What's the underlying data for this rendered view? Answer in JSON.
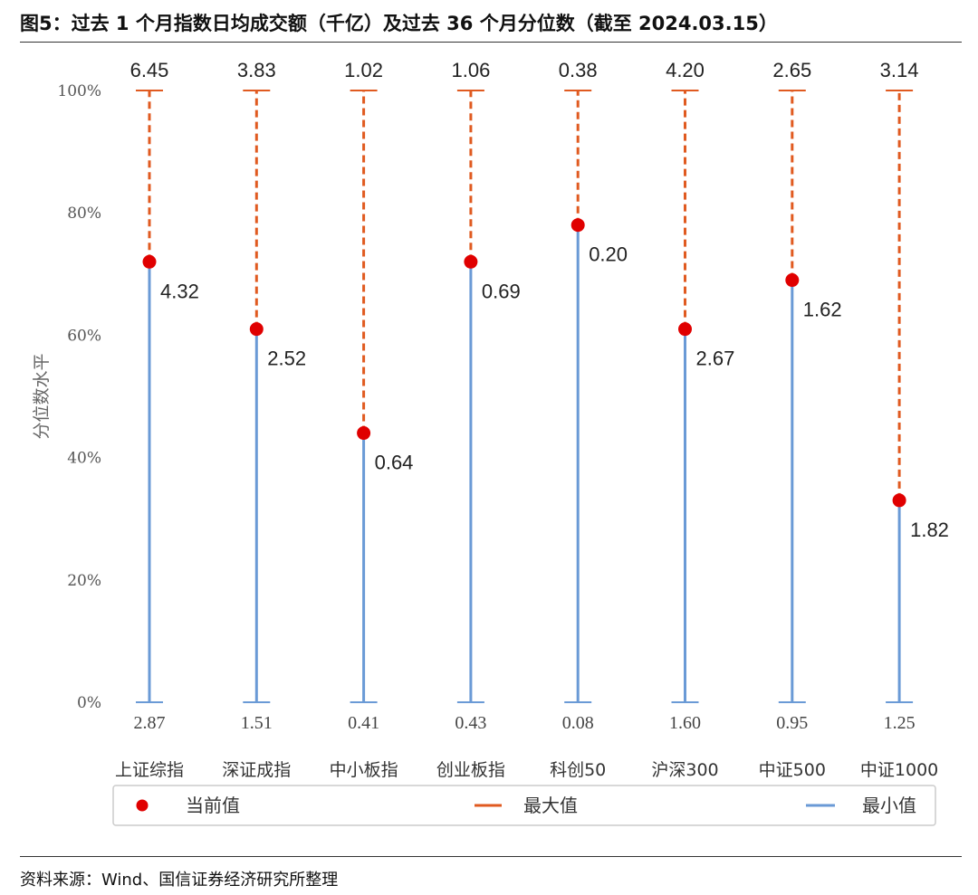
{
  "figure": {
    "title": "图5：过去 1 个月指数日均成交额（千亿）及过去 36 个月分位数（截至 2024.03.15）",
    "source": "资料来源：Wind、国信证券经济研究所整理"
  },
  "colors": {
    "current": "#e00000",
    "max": "#e05a20",
    "min": "#6a9ad6"
  },
  "chart_data": {
    "type": "scatter",
    "title": "",
    "ylabel": "分位数水平",
    "ylim": [
      0,
      100
    ],
    "yticks": [
      "0%",
      "20%",
      "40%",
      "60%",
      "80%",
      "100%"
    ],
    "ytick_values": [
      0,
      20,
      40,
      60,
      80,
      100
    ],
    "grid": false,
    "legend_placement": "bottom",
    "categories": [
      "上证综指",
      "深证成指",
      "中小板指",
      "创业板指",
      "科创50",
      "沪深300",
      "中证500",
      "中证1000"
    ],
    "current_percentile": [
      72,
      61,
      44,
      72,
      78,
      61,
      69,
      33
    ],
    "current_value": [
      "4.32",
      "2.52",
      "0.64",
      "0.69",
      "0.20",
      "2.67",
      "1.62",
      "1.82"
    ],
    "max_value": [
      "6.45",
      "3.83",
      "1.02",
      "1.06",
      "0.38",
      "4.20",
      "2.65",
      "3.14"
    ],
    "min_value": [
      "2.87",
      "1.51",
      "0.41",
      "0.43",
      "0.08",
      "1.60",
      "0.95",
      "1.25"
    ],
    "legend": [
      {
        "name": "当前值",
        "marker": "dot"
      },
      {
        "name": "最大值",
        "marker": "dash"
      },
      {
        "name": "最小值",
        "marker": "line"
      }
    ]
  }
}
